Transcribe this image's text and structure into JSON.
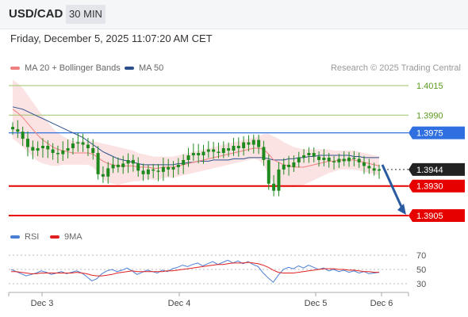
{
  "header": {
    "symbol": "USD/CAD",
    "timeframe": "30 MIN"
  },
  "timestamp": "Friday, December 5, 2025 11:07:20 AM CET",
  "credit": "Research © 2025 Trading Central",
  "colors": {
    "ma20": "#f08080",
    "ma50": "#2c4f8c",
    "rsi": "#4a7fd4",
    "rsi_ma": "#e02020",
    "support": "#e60000",
    "resistance": "#2f6fe0",
    "target": "#9fc46a",
    "candle": "#1e8a1e",
    "arrow": "#2a5aa0"
  },
  "chart_data": [
    {
      "type": "candlestick",
      "legend": [
        {
          "name": "MA 20 + Bollinger Bands",
          "color": "#f08080"
        },
        {
          "name": "MA 50",
          "color": "#2c4f8c"
        }
      ],
      "ylim": [
        1.3895,
        1.403
      ],
      "x_ticks": [
        "Dec 3",
        "Dec 4",
        "Dec 5",
        "Dec 6"
      ],
      "current_price": 1.3944,
      "levels": [
        {
          "value": 1.4015,
          "label": "1.4015",
          "kind": "target"
        },
        {
          "value": 1.399,
          "label": "1.3990",
          "kind": "target"
        },
        {
          "value": 1.3975,
          "label": "1.3975",
          "kind": "resistance"
        },
        {
          "value": 1.3944,
          "label": "1.3944",
          "kind": "last"
        },
        {
          "value": 1.393,
          "label": "1.3930",
          "kind": "support"
        },
        {
          "value": 1.3905,
          "label": "1.3905",
          "kind": "support"
        }
      ],
      "forecast": {
        "from": 1.3948,
        "to": 1.3905
      },
      "close": [
        1.3978,
        1.3976,
        1.397,
        1.3963,
        1.396,
        1.3962,
        1.3964,
        1.3961,
        1.3958,
        1.3957,
        1.396,
        1.3962,
        1.3966,
        1.3967,
        1.3965,
        1.3962,
        1.3958,
        1.394,
        1.3938,
        1.3945,
        1.3948,
        1.3946,
        1.3949,
        1.3952,
        1.3949,
        1.3943,
        1.394,
        1.3944,
        1.3943,
        1.3942,
        1.3946,
        1.3944,
        1.3946,
        1.3948,
        1.3952,
        1.3956,
        1.3958,
        1.3956,
        1.3959,
        1.3961,
        1.3959,
        1.3958,
        1.3962,
        1.396,
        1.3964,
        1.3962,
        1.3967,
        1.3965,
        1.3969,
        1.3963,
        1.3952,
        1.3932,
        1.3926,
        1.3944,
        1.3948,
        1.3946,
        1.395,
        1.3954,
        1.3956,
        1.3958,
        1.3955,
        1.3952,
        1.3954,
        1.3951,
        1.395,
        1.3953,
        1.3951,
        1.3954,
        1.3953,
        1.395,
        1.3947,
        1.3945,
        1.3943,
        1.3944
      ],
      "ma20": [
        1.3995,
        1.3992,
        1.3988,
        1.3983,
        1.3978,
        1.3973,
        1.3969,
        1.3966,
        1.3963,
        1.3961,
        1.396,
        1.3959,
        1.3958,
        1.3958,
        1.3958,
        1.3958,
        1.3957,
        1.3954,
        1.3951,
        1.3949,
        1.3948,
        1.3947,
        1.3947,
        1.3947,
        1.3947,
        1.3946,
        1.3946,
        1.3946,
        1.3945,
        1.3945,
        1.3946,
        1.3946,
        1.3946,
        1.3947,
        1.3948,
        1.3949,
        1.395,
        1.3951,
        1.3952,
        1.3953,
        1.3954,
        1.3955,
        1.3956,
        1.3957,
        1.3958,
        1.3959,
        1.396,
        1.3961,
        1.3962,
        1.3962,
        1.3961,
        1.3957,
        1.3952,
        1.395,
        1.3948,
        1.3947,
        1.3946,
        1.3946,
        1.3946,
        1.3947,
        1.3948,
        1.3949,
        1.395,
        1.3951,
        1.3951,
        1.3952,
        1.3952,
        1.3952,
        1.3952,
        1.3951,
        1.395,
        1.3949,
        1.3948,
        1.3947
      ],
      "ma50": [
        1.3997,
        1.3996,
        1.3995,
        1.3993,
        1.3991,
        1.3989,
        1.3987,
        1.3985,
        1.3983,
        1.3981,
        1.3979,
        1.3977,
        1.3975,
        1.3973,
        1.3971,
        1.3968,
        1.3965,
        1.3962,
        1.3959,
        1.3957,
        1.3955,
        1.3953,
        1.3952,
        1.3951,
        1.395,
        1.3949,
        1.3948,
        1.3948,
        1.3948,
        1.3948,
        1.3948,
        1.3948,
        1.3948,
        1.3949,
        1.3949,
        1.395,
        1.395,
        1.3951,
        1.3951,
        1.3951,
        1.3952,
        1.3952,
        1.3952,
        1.3952,
        1.3953,
        1.3953,
        1.3953,
        1.3954,
        1.3954,
        1.3954,
        1.3954,
        1.3953,
        1.3952,
        1.3952,
        1.3952,
        1.3953,
        1.3953,
        1.3954,
        1.3954,
        1.3955,
        1.3955,
        1.3956,
        1.3956,
        1.3956,
        1.3956,
        1.3956,
        1.3956,
        1.3956,
        1.3955,
        1.3955,
        1.3954,
        1.3954,
        1.3954,
        1.3954
      ],
      "band_width": [
        0.0025,
        0.0025,
        0.0025,
        0.0024,
        0.0023,
        0.0022,
        0.002,
        0.0018,
        0.0016,
        0.0014,
        0.0012,
        0.0011,
        0.001,
        0.001,
        0.001,
        0.001,
        0.0011,
        0.0013,
        0.0015,
        0.0016,
        0.0016,
        0.0016,
        0.0015,
        0.0014,
        0.0013,
        0.0012,
        0.0011,
        0.001,
        0.001,
        0.001,
        0.0009,
        0.0009,
        0.0009,
        0.0009,
        0.0009,
        0.0009,
        0.0009,
        0.0009,
        0.0009,
        0.0009,
        0.0009,
        0.0009,
        0.0009,
        0.0009,
        0.0009,
        0.0009,
        0.0009,
        0.0009,
        0.0009,
        0.001,
        0.0013,
        0.0017,
        0.002,
        0.002,
        0.0019,
        0.0018,
        0.0017,
        0.0016,
        0.0015,
        0.0014,
        0.0013,
        0.0012,
        0.0011,
        0.001,
        0.0009,
        0.0008,
        0.0008,
        0.0008,
        0.0008,
        0.0008,
        0.0008,
        0.0008,
        0.0008,
        0.0008
      ]
    },
    {
      "type": "line",
      "legend": [
        {
          "name": "RSI",
          "color": "#4a7fd4"
        },
        {
          "name": "9MA",
          "color": "#e02020"
        }
      ],
      "ylim": [
        20,
        80
      ],
      "y_ticks": [
        70,
        50,
        30
      ],
      "rsi": [
        50,
        47,
        44,
        41,
        43,
        45,
        48,
        46,
        43,
        45,
        47,
        44,
        46,
        48,
        45,
        40,
        34,
        37,
        44,
        48,
        50,
        47,
        49,
        52,
        48,
        43,
        46,
        49,
        47,
        45,
        49,
        47,
        51,
        53,
        56,
        54,
        57,
        59,
        55,
        58,
        61,
        57,
        60,
        63,
        59,
        62,
        58,
        61,
        57,
        54,
        45,
        38,
        32,
        42,
        50,
        53,
        51,
        55,
        52,
        56,
        53,
        50,
        52,
        48,
        50,
        47,
        49,
        46,
        48,
        45,
        47,
        44,
        45,
        46
      ],
      "rsi_ma": [
        47,
        47,
        46,
        45,
        44,
        44,
        45,
        45,
        45,
        45,
        45,
        45,
        45,
        46,
        45,
        44,
        42,
        41,
        41,
        42,
        43,
        45,
        46,
        47,
        48,
        47,
        47,
        47,
        47,
        47,
        47,
        48,
        48,
        49,
        50,
        51,
        52,
        53,
        54,
        55,
        56,
        57,
        57,
        58,
        59,
        59,
        59,
        60,
        59,
        58,
        56,
        53,
        49,
        46,
        45,
        45,
        45,
        46,
        47,
        48,
        49,
        50,
        51,
        51,
        51,
        50,
        50,
        49,
        49,
        48,
        47,
        47,
        46,
        46
      ]
    }
  ]
}
